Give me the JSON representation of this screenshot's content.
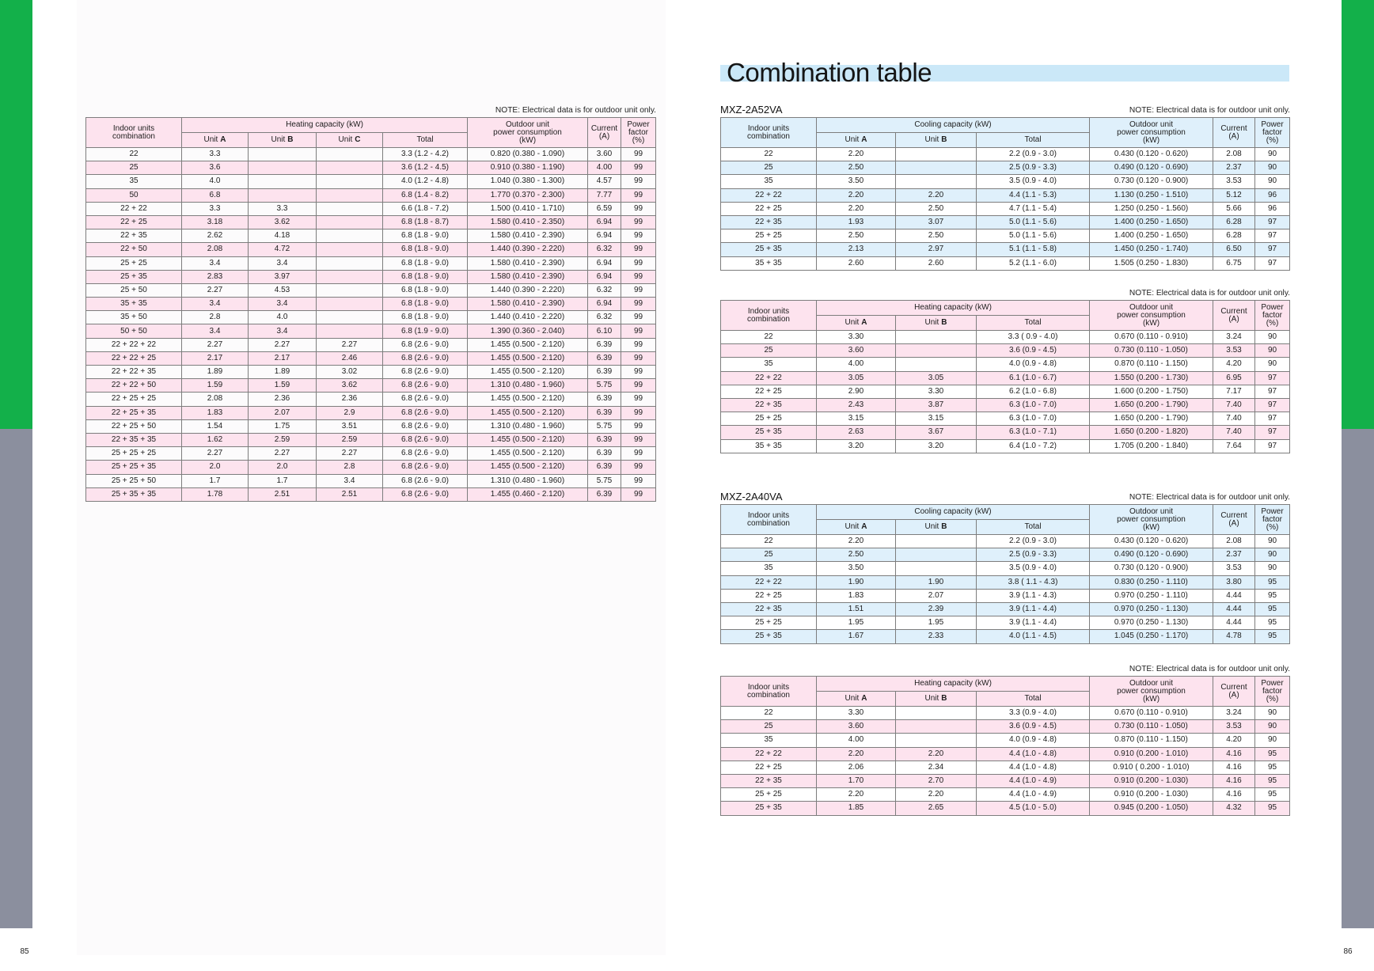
{
  "page_numbers": {
    "left": "85",
    "right": "86"
  },
  "title": "Combination table",
  "colors": {
    "green_tab": "#13b04a",
    "gray_tab": "#8b8f9e",
    "title_band": "#cbe8f8",
    "pink_fill": "#fde3ee",
    "blue_fill": "#dff0fb"
  },
  "header": {
    "combination": [
      "Indoor units",
      "combination"
    ],
    "unit_label": "Unit",
    "total_label": "Total",
    "power": [
      "Outdoor unit",
      "power consumption",
      "(kW)"
    ],
    "current": [
      "Current",
      "(A)"
    ],
    "power_factor": [
      "Power",
      "factor",
      "(%)"
    ]
  },
  "tables": [
    {
      "note": "NOTE: Electrical data is for outdoor unit only.",
      "capacity_header": "Heating capacity (kW)",
      "row_color": "#fde3ee",
      "units": [
        "A",
        "B",
        "C"
      ],
      "rows": [
        [
          "22",
          "3.3",
          "",
          "",
          "3.3 (1.2 - 4.2)",
          "0.820 (0.380 - 1.090)",
          "3.60",
          "99"
        ],
        [
          "25",
          "3.6",
          "",
          "",
          "3.6 (1.2 - 4.5)",
          "0.910 (0.380 - 1.190)",
          "4.00",
          "99"
        ],
        [
          "35",
          "4.0",
          "",
          "",
          "4.0 (1.2 - 4.8)",
          "1.040 (0.380 - 1.300)",
          "4.57",
          "99"
        ],
        [
          "50",
          "6.8",
          "",
          "",
          "6.8 (1.4 - 8.2)",
          "1.770 (0.370 - 2.300)",
          "7.77",
          "99"
        ],
        [
          "22 + 22",
          "3.3",
          "3.3",
          "",
          "6.6 (1.8 - 7.2)",
          "1.500 (0.410 - 1.710)",
          "6.59",
          "99"
        ],
        [
          "22 + 25",
          "3.18",
          "3.62",
          "",
          "6.8 (1.8 - 8.7)",
          "1.580 (0.410 - 2.350)",
          "6.94",
          "99"
        ],
        [
          "22 + 35",
          "2.62",
          "4.18",
          "",
          "6.8 (1.8 - 9.0)",
          "1.580 (0.410 - 2.390)",
          "6.94",
          "99"
        ],
        [
          "22 + 50",
          "2.08",
          "4.72",
          "",
          "6.8 (1.8 - 9.0)",
          "1.440 (0.390 - 2.220)",
          "6.32",
          "99"
        ],
        [
          "25 + 25",
          "3.4",
          "3.4",
          "",
          "6.8 (1.8 - 9.0)",
          "1.580 (0.410 - 2.390)",
          "6.94",
          "99"
        ],
        [
          "25 + 35",
          "2.83",
          "3.97",
          "",
          "6.8 (1.8 - 9.0)",
          "1.580 (0.410 - 2.390)",
          "6.94",
          "99"
        ],
        [
          "25 + 50",
          "2.27",
          "4.53",
          "",
          "6.8 (1.8 - 9.0)",
          "1.440 (0.390 - 2.220)",
          "6.32",
          "99"
        ],
        [
          "35 + 35",
          "3.4",
          "3.4",
          "",
          "6.8 (1.8 - 9.0)",
          "1.580 (0.410 - 2.390)",
          "6.94",
          "99"
        ],
        [
          "35 + 50",
          "2.8",
          "4.0",
          "",
          "6.8 (1.8 - 9.0)",
          "1.440 (0.410 - 2.220)",
          "6.32",
          "99"
        ],
        [
          "50 + 50",
          "3.4",
          "3.4",
          "",
          "6.8 (1.9 - 9.0)",
          "1.390 (0.360 - 2.040)",
          "6.10",
          "99"
        ],
        [
          "22 + 22 + 22",
          "2.27",
          "2.27",
          "2.27",
          "6.8 (2.6 - 9.0)",
          "1.455 (0.500 - 2.120)",
          "6.39",
          "99"
        ],
        [
          "22 + 22 + 25",
          "2.17",
          "2.17",
          "2.46",
          "6.8 (2.6 - 9.0)",
          "1.455 (0.500 - 2.120)",
          "6.39",
          "99"
        ],
        [
          "22 + 22 + 35",
          "1.89",
          "1.89",
          "3.02",
          "6.8 (2.6 - 9.0)",
          "1.455 (0.500 - 2.120)",
          "6.39",
          "99"
        ],
        [
          "22 + 22 + 50",
          "1.59",
          "1.59",
          "3.62",
          "6.8 (2.6 - 9.0)",
          "1.310 (0.480 - 1.960)",
          "5.75",
          "99"
        ],
        [
          "22 + 25 + 25",
          "2.08",
          "2.36",
          "2.36",
          "6.8 (2.6 - 9.0)",
          "1.455 (0.500 - 2.120)",
          "6.39",
          "99"
        ],
        [
          "22 + 25 + 35",
          "1.83",
          "2.07",
          "2.9",
          "6.8 (2.6 - 9.0)",
          "1.455 (0.500 - 2.120)",
          "6.39",
          "99"
        ],
        [
          "22 + 25 + 50",
          "1.54",
          "1.75",
          "3.51",
          "6.8 (2.6 - 9.0)",
          "1.310 (0.480 - 1.960)",
          "5.75",
          "99"
        ],
        [
          "22 + 35 + 35",
          "1.62",
          "2.59",
          "2.59",
          "6.8 (2.6 - 9.0)",
          "1.455 (0.500 - 2.120)",
          "6.39",
          "99"
        ],
        [
          "25 + 25 + 25",
          "2.27",
          "2.27",
          "2.27",
          "6.8 (2.6 - 9.0)",
          "1.455 (0.500 - 2.120)",
          "6.39",
          "99"
        ],
        [
          "25 + 25 + 35",
          "2.0",
          "2.0",
          "2.8",
          "6.8 (2.6 - 9.0)",
          "1.455 (0.500 - 2.120)",
          "6.39",
          "99"
        ],
        [
          "25 + 25 + 50",
          "1.7",
          "1.7",
          "3.4",
          "6.8 (2.6 - 9.0)",
          "1.310 (0.480 - 1.960)",
          "5.75",
          "99"
        ],
        [
          "25 + 35 + 35",
          "1.78",
          "2.51",
          "2.51",
          "6.8 (2.6 - 9.0)",
          "1.455 (0.460 - 2.120)",
          "6.39",
          "99"
        ]
      ]
    },
    {
      "model": "MXZ-2A52VA",
      "note": "NOTE: Electrical data is for outdoor unit only.",
      "capacity_header": "Cooling capacity (kW)",
      "row_color": "#dff0fb",
      "units": [
        "A",
        "B"
      ],
      "rows": [
        [
          "22",
          "2.20",
          "",
          "2.2 (0.9 - 3.0)",
          "0.430 (0.120 - 0.620)",
          "2.08",
          "90"
        ],
        [
          "25",
          "2.50",
          "",
          "2.5 (0.9 - 3.3)",
          "0.490 (0.120 - 0.690)",
          "2.37",
          "90"
        ],
        [
          "35",
          "3.50",
          "",
          "3.5 (0.9 - 4.0)",
          "0.730 (0.120 - 0.900)",
          "3.53",
          "90"
        ],
        [
          "22 + 22",
          "2.20",
          "2.20",
          "4.4 (1.1 - 5.3)",
          "1.130 (0.250 - 1.510)",
          "5.12",
          "96"
        ],
        [
          "22 + 25",
          "2.20",
          "2.50",
          "4.7 (1.1 - 5.4)",
          "1.250 (0.250 - 1.560)",
          "5.66",
          "96"
        ],
        [
          "22 + 35",
          "1.93",
          "3.07",
          "5.0 (1.1 - 5.6)",
          "1.400 (0.250 - 1.650)",
          "6.28",
          "97"
        ],
        [
          "25 + 25",
          "2.50",
          "2.50",
          "5.0 (1.1 - 5.6)",
          "1.400 (0.250 - 1.650)",
          "6.28",
          "97"
        ],
        [
          "25 + 35",
          "2.13",
          "2.97",
          "5.1 (1.1 - 5.8)",
          "1.450 (0.250 - 1.740)",
          "6.50",
          "97"
        ],
        [
          "35 + 35",
          "2.60",
          "2.60",
          "5.2 (1.1 - 6.0)",
          "1.505 (0.250 - 1.830)",
          "6.75",
          "97"
        ]
      ]
    },
    {
      "note": "NOTE: Electrical data is for outdoor unit only.",
      "capacity_header": "Heating capacity (kW)",
      "row_color": "#fde3ee",
      "units": [
        "A",
        "B"
      ],
      "rows": [
        [
          "22",
          "3.30",
          "",
          "3.3 ( 0.9 - 4.0)",
          "0.670 (0.110 - 0.910)",
          "3.24",
          "90"
        ],
        [
          "25",
          "3.60",
          "",
          "3.6 (0.9 - 4.5)",
          "0.730 (0.110 - 1.050)",
          "3.53",
          "90"
        ],
        [
          "35",
          "4.00",
          "",
          "4.0 (0.9 - 4.8)",
          "0.870 (0.110 - 1.150)",
          "4.20",
          "90"
        ],
        [
          "22 + 22",
          "3.05",
          "3.05",
          "6.1 (1.0 - 6.7)",
          "1.550 (0.200 - 1.730)",
          "6.95",
          "97"
        ],
        [
          "22 + 25",
          "2.90",
          "3.30",
          "6.2 (1.0 - 6.8)",
          "1.600 (0.200 - 1.750)",
          "7.17",
          "97"
        ],
        [
          "22 + 35",
          "2.43",
          "3.87",
          "6.3 (1.0 - 7.0)",
          "1.650 (0.200 - 1.790)",
          "7.40",
          "97"
        ],
        [
          "25 + 25",
          "3.15",
          "3.15",
          "6.3 (1.0 - 7.0)",
          "1.650 (0.200 - 1.790)",
          "7.40",
          "97"
        ],
        [
          "25 + 35",
          "2.63",
          "3.67",
          "6.3 (1.0 - 7.1)",
          "1.650 (0.200 - 1.820)",
          "7.40",
          "97"
        ],
        [
          "35 + 35",
          "3.20",
          "3.20",
          "6.4 (1.0 - 7.2)",
          "1.705 (0.200 - 1.840)",
          "7.64",
          "97"
        ]
      ]
    },
    {
      "model": "MXZ-2A40VA",
      "note": "NOTE: Electrical data is for outdoor unit only.",
      "capacity_header": "Cooling capacity (kW)",
      "row_color": "#dff0fb",
      "units": [
        "A",
        "B"
      ],
      "rows": [
        [
          "22",
          "2.20",
          "",
          "2.2 (0.9 - 3.0)",
          "0.430 (0.120 - 0.620)",
          "2.08",
          "90"
        ],
        [
          "25",
          "2.50",
          "",
          "2.5 (0.9 - 3.3)",
          "0.490 (0.120 - 0.690)",
          "2.37",
          "90"
        ],
        [
          "35",
          "3.50",
          "",
          "3.5 (0.9 - 4.0)",
          "0.730 (0.120 - 0.900)",
          "3.53",
          "90"
        ],
        [
          "22 + 22",
          "1.90",
          "1.90",
          "3.8 ( 1.1 - 4.3)",
          "0.830 (0.250 - 1.110)",
          "3.80",
          "95"
        ],
        [
          "22 + 25",
          "1.83",
          "2.07",
          "3.9 (1.1 - 4.3)",
          "0.970 (0.250 - 1.110)",
          "4.44",
          "95"
        ],
        [
          "22 + 35",
          "1.51",
          "2.39",
          "3.9 (1.1 - 4.4)",
          "0.970 (0.250 - 1.130)",
          "4.44",
          "95"
        ],
        [
          "25 + 25",
          "1.95",
          "1.95",
          "3.9 (1.1 - 4.4)",
          "0.970 (0.250 - 1.130)",
          "4.44",
          "95"
        ],
        [
          "25 + 35",
          "1.67",
          "2.33",
          "4.0 (1.1 - 4.5)",
          "1.045 (0.250 - 1.170)",
          "4.78",
          "95"
        ]
      ]
    },
    {
      "note": "NOTE: Electrical data is for outdoor unit only.",
      "capacity_header": "Heating capacity (kW)",
      "row_color": "#fde3ee",
      "units": [
        "A",
        "B"
      ],
      "rows": [
        [
          "22",
          "3.30",
          "",
          "3.3 (0.9 - 4.0)",
          "0.670 (0.110 - 0.910)",
          "3.24",
          "90"
        ],
        [
          "25",
          "3.60",
          "",
          "3.6 (0.9 - 4.5)",
          "0.730 (0.110 - 1.050)",
          "3.53",
          "90"
        ],
        [
          "35",
          "4.00",
          "",
          "4.0 (0.9 - 4.8)",
          "0.870 (0.110 - 1.150)",
          "4.20",
          "90"
        ],
        [
          "22 + 22",
          "2.20",
          "2.20",
          "4.4 (1.0 - 4.8)",
          "0.910 (0.200 - 1.010)",
          "4.16",
          "95"
        ],
        [
          "22 + 25",
          "2.06",
          "2.34",
          "4.4 (1.0 - 4.8)",
          "0.910 ( 0.200 - 1.010)",
          "4.16",
          "95"
        ],
        [
          "22 + 35",
          "1.70",
          "2.70",
          "4.4 (1.0 - 4.9)",
          "0.910 (0.200 - 1.030)",
          "4.16",
          "95"
        ],
        [
          "25 + 25",
          "2.20",
          "2.20",
          "4.4 (1.0 - 4.9)",
          "0.910 (0.200 - 1.030)",
          "4.16",
          "95"
        ],
        [
          "25 + 35",
          "1.85",
          "2.65",
          "4.5 (1.0 - 5.0)",
          "0.945 (0.200 - 1.050)",
          "4.32",
          "95"
        ]
      ]
    }
  ]
}
